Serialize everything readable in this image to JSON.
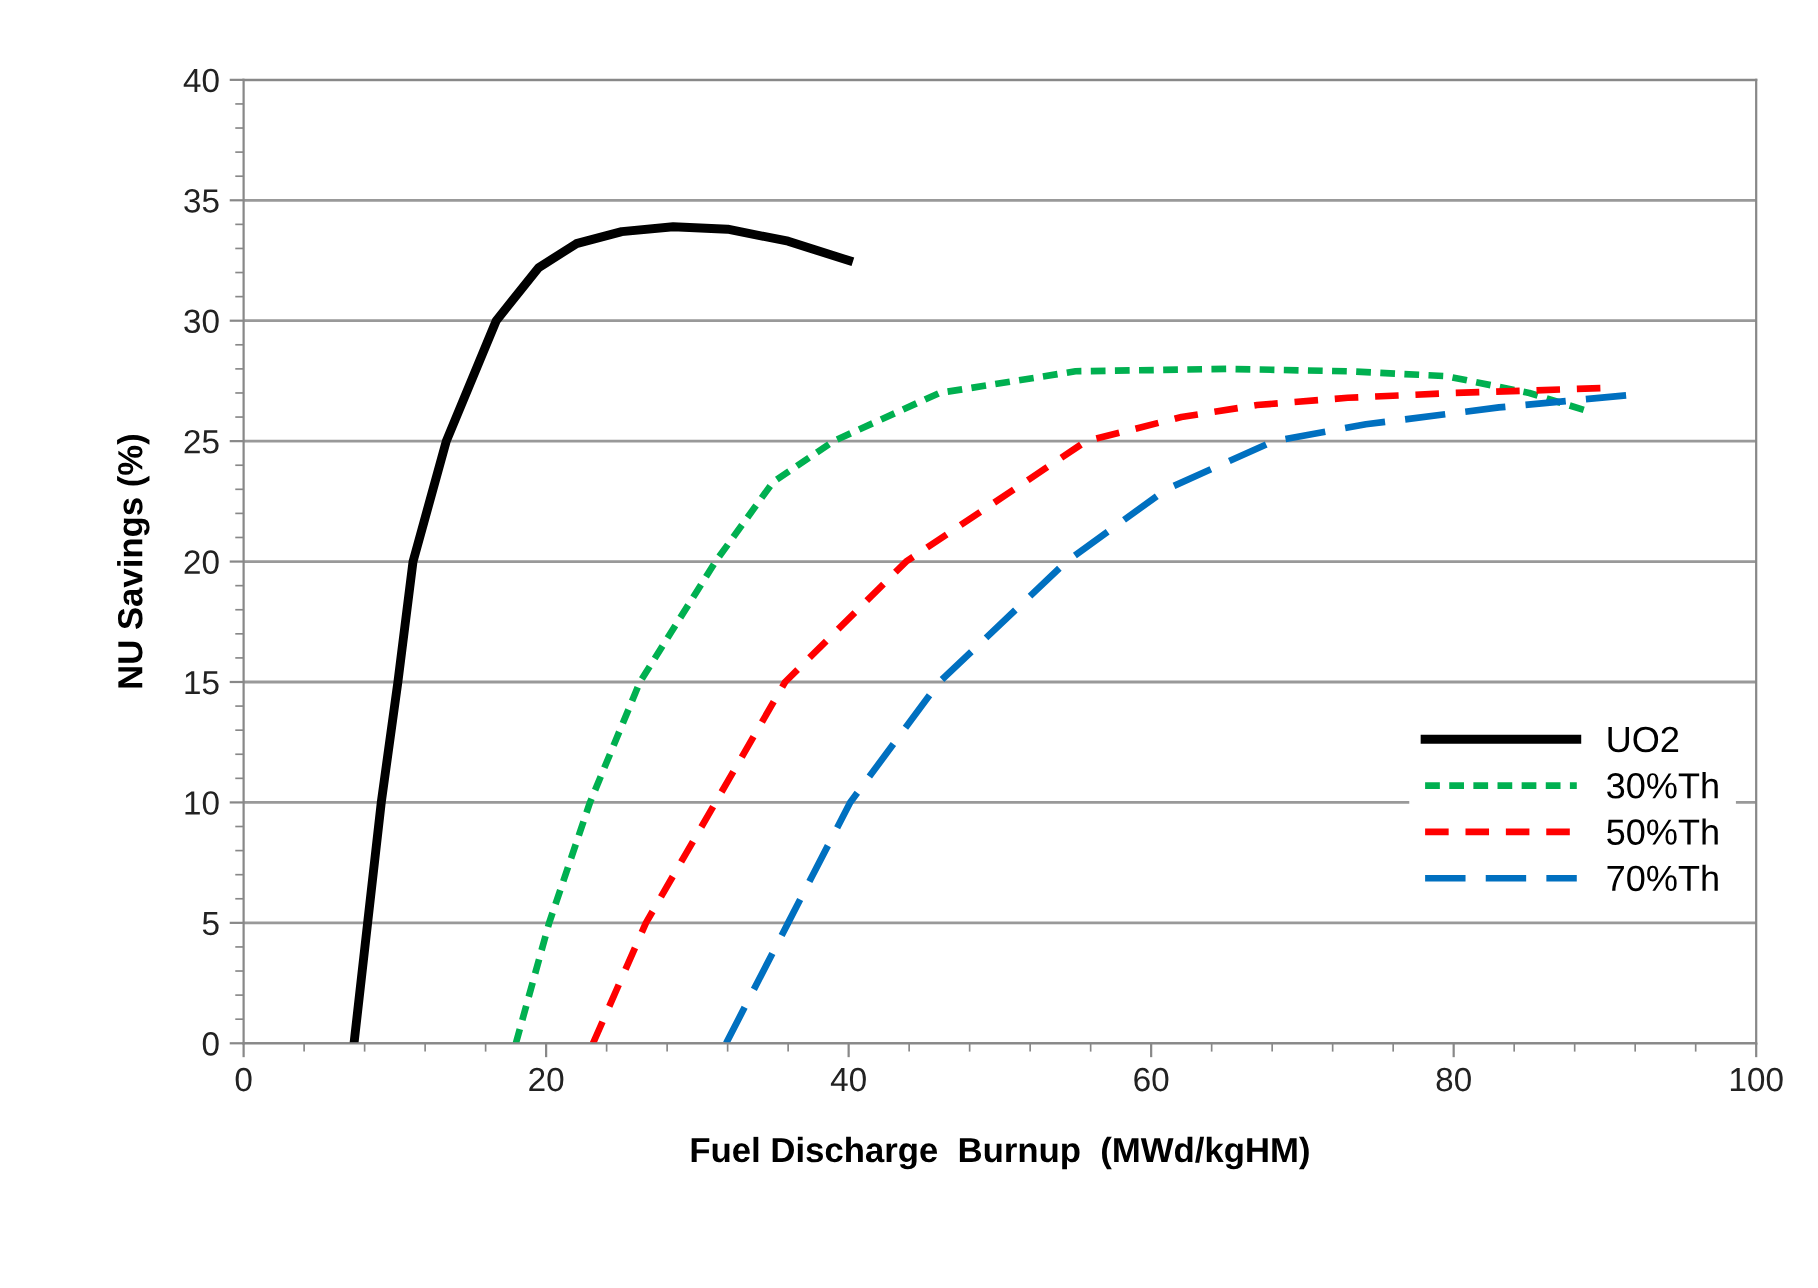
{
  "chart_data": {
    "type": "line",
    "xlabel": "Fuel Discharge  Burnup  (MWd/kgHM)",
    "ylabel": "NU Savings (%)",
    "xlim": [
      0,
      100
    ],
    "xticks": [
      0,
      20,
      40,
      60,
      80,
      100
    ],
    "ylim": [
      0,
      40
    ],
    "yticks": [
      0,
      5,
      10,
      15,
      20,
      25,
      30,
      35,
      40
    ],
    "grid": "y",
    "legend": "right",
    "series": [
      {
        "name": "UO2",
        "color": "#000000",
        "line_style": "solid",
        "x": [
          7.3,
          8.2,
          9.1,
          10.2,
          11.2,
          13.4,
          16.7,
          19.5,
          22,
          25,
          28.4,
          32,
          36,
          40
        ],
        "values": [
          0,
          5,
          10,
          15,
          20,
          25,
          30,
          32.2,
          33.2,
          33.7,
          33.9,
          33.8,
          33.3,
          32.5
        ]
      },
      {
        "name": "30%Th",
        "color": "#00b050",
        "line_style": "dotted",
        "x": [
          18.0,
          20.2,
          22.9,
          26.2,
          31.2,
          35,
          39.0,
          46,
          55,
          65,
          73,
          79.5,
          85,
          88.6
        ],
        "values": [
          0,
          5,
          10,
          15,
          20,
          23.3,
          25,
          27,
          27.9,
          28,
          27.9,
          27.7,
          27,
          26.3
        ]
      },
      {
        "name": "50%Th",
        "color": "#ff0000",
        "line_style": "dashed",
        "x": [
          23.1,
          26.6,
          31.2,
          35.8,
          43.8,
          55.7,
          62,
          67,
          73,
          80,
          85,
          89.7
        ],
        "values": [
          0,
          5,
          10,
          15,
          20,
          25,
          26,
          26.5,
          26.8,
          27,
          27.1,
          27.2
        ]
      },
      {
        "name": "70%Th",
        "color": "#0070c0",
        "line_style": "longdash",
        "x": [
          31.9,
          36.0,
          40.1,
          46.0,
          54.4,
          61,
          68.1,
          74.2,
          83,
          91.4
        ],
        "values": [
          0,
          5,
          10,
          15,
          20,
          23,
          25,
          25.7,
          26.4,
          26.9
        ]
      }
    ]
  }
}
